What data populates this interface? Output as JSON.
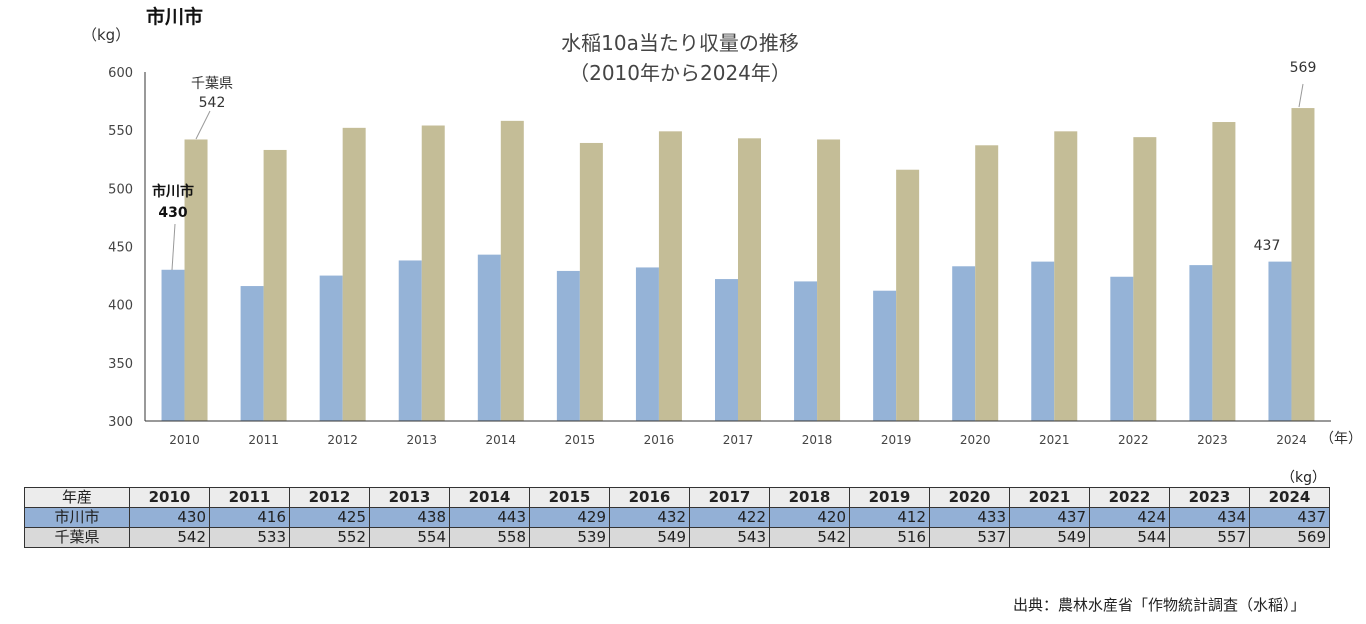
{
  "region_title": "市川市",
  "chart_data": {
    "type": "bar",
    "title": "水稲10a当たり収量の推移",
    "subtitle": "（2010年から2024年）",
    "ylabel": "（kg）",
    "xlabel": "（年）",
    "ylim": [
      300,
      600
    ],
    "yticks": [
      300,
      350,
      400,
      450,
      500,
      550,
      600
    ],
    "categories": [
      "2010",
      "2011",
      "2012",
      "2013",
      "2014",
      "2015",
      "2016",
      "2017",
      "2018",
      "2019",
      "2020",
      "2021",
      "2022",
      "2023",
      "2024"
    ],
    "series": [
      {
        "name": "市川市",
        "color": "#95b3d7",
        "values": [
          430,
          416,
          425,
          438,
          443,
          429,
          432,
          422,
          420,
          412,
          433,
          437,
          424,
          434,
          437
        ]
      },
      {
        "name": "千葉県",
        "color": "#c4bd97",
        "values": [
          542,
          533,
          552,
          554,
          558,
          539,
          549,
          543,
          542,
          516,
          537,
          549,
          544,
          557,
          569
        ]
      }
    ],
    "annotations": {
      "city_first_name": "市川市",
      "city_first_value": "430",
      "pref_first_name": "千葉県",
      "pref_first_value": "542",
      "city_last_value": "437",
      "pref_last_value": "569"
    }
  },
  "table": {
    "unit": "（kg）",
    "header_label": "年産",
    "years": [
      "2010",
      "2011",
      "2012",
      "2013",
      "2014",
      "2015",
      "2016",
      "2017",
      "2018",
      "2019",
      "2020",
      "2021",
      "2022",
      "2023",
      "2024"
    ],
    "rows": [
      {
        "label": "市川市",
        "values": [
          "430",
          "416",
          "425",
          "438",
          "443",
          "429",
          "432",
          "422",
          "420",
          "412",
          "433",
          "437",
          "424",
          "434",
          "437"
        ]
      },
      {
        "label": "千葉県",
        "values": [
          "542",
          "533",
          "552",
          "554",
          "558",
          "539",
          "549",
          "543",
          "542",
          "516",
          "537",
          "549",
          "544",
          "557",
          "569"
        ]
      }
    ]
  },
  "source": "出典：農林水産省「作物統計調査（水稲）」"
}
